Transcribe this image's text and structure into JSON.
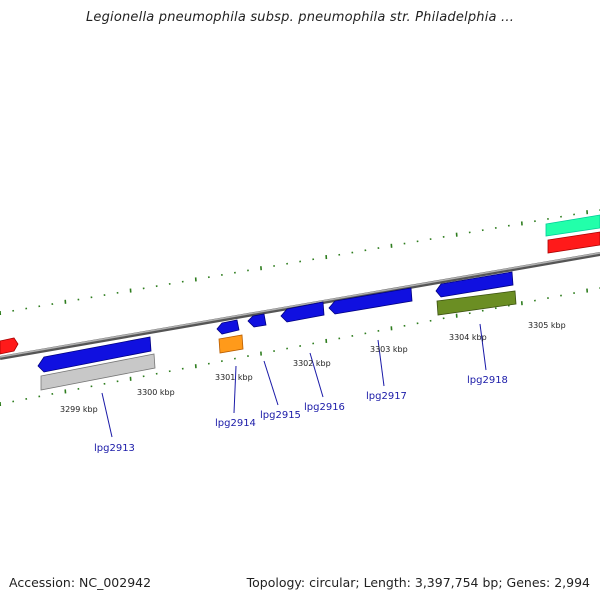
{
  "title": "Legionella pneumophila subsp. pneumophila str. Philadelphia ...",
  "footer": {
    "accession": "Accession: NC_002942",
    "summary": "Topology: circular; Length: 3,397,754 bp; Genes: 2,994"
  },
  "colors": {
    "backbone": "#8a8a8a",
    "tick_mark": "#2e7d1e",
    "gene_label": "#1a1aa8",
    "forward_gene": "#1010e0",
    "grey_feature": "#c8c8c8",
    "orange_feature": "#ff9a1a",
    "olive_feature": "#6b8e23",
    "red_feature": "#ff1a1a",
    "teal_feature": "#22ffaa"
  },
  "scale_labels": [
    "3299 kbp",
    "3300 kbp",
    "3301 kbp",
    "3302 kbp",
    "3303 kbp",
    "3304 kbp",
    "3305 kbp"
  ],
  "gene_labels": [
    "lpg2913",
    "lpg2914",
    "lpg2915",
    "lpg2916",
    "lpg2917",
    "lpg2918"
  ]
}
